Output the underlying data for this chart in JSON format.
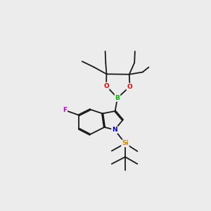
{
  "bg_color": "#ececec",
  "bond_color": "#1a1a1a",
  "bond_width": 1.3,
  "dbo": 0.028,
  "atom_colors": {
    "B": "#00bb00",
    "O": "#ee0000",
    "N": "#0000ee",
    "F": "#cc00cc",
    "Si": "#cc8800"
  },
  "afs": 6.5,
  "figsize": [
    3.0,
    3.0
  ],
  "dpi": 100,
  "xlim": [
    0,
    10
  ],
  "ylim": [
    0,
    10
  ]
}
